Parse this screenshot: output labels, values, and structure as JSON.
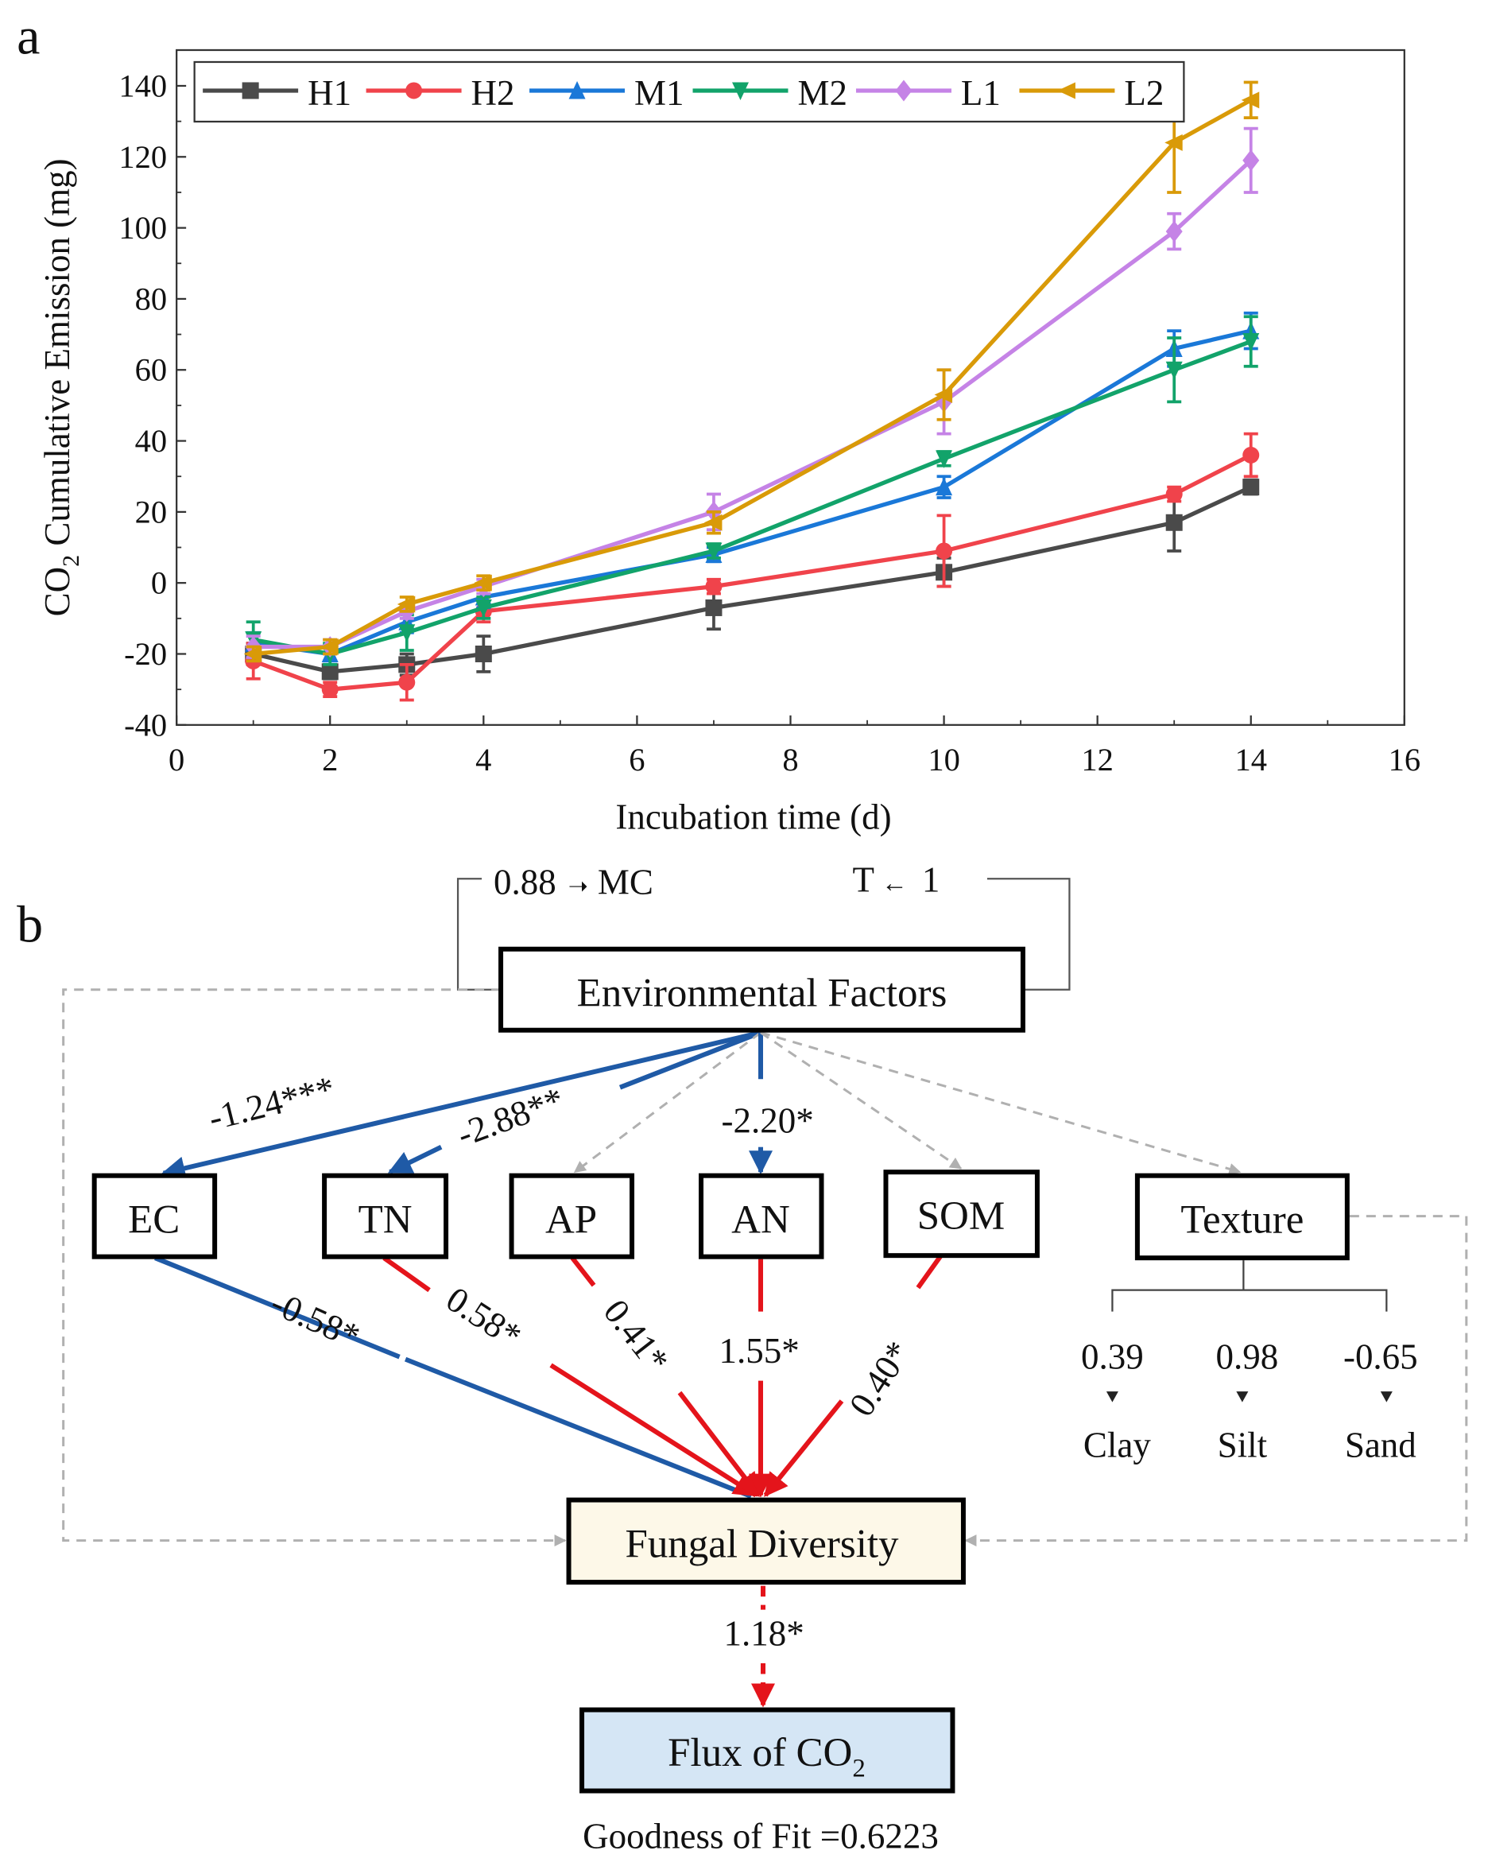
{
  "chart_data": {
    "type": "line",
    "panel_label": "a",
    "xlabel": "Incubation time (d)",
    "ylabel_prefix": "CO",
    "ylabel_sub": "2",
    "ylabel_suffix": " Cumulative Emission (mg)",
    "xlim": [
      0,
      16
    ],
    "ylim": [
      -40,
      140
    ],
    "xticks": [
      0,
      2,
      4,
      6,
      8,
      10,
      12,
      14,
      16
    ],
    "yticks": [
      -40,
      -20,
      0,
      20,
      40,
      60,
      80,
      100,
      120,
      140
    ],
    "legend_position": "top-left",
    "grid": false,
    "x": [
      1,
      2,
      3,
      4,
      7,
      10,
      13,
      14
    ],
    "series": [
      {
        "name": "H1",
        "color": "#4a4a4a",
        "marker": "square",
        "values": [
          -20,
          -25,
          -23,
          -20,
          -7,
          3,
          17,
          27
        ],
        "errors": [
          3,
          2,
          3,
          5,
          6,
          4,
          8,
          2
        ]
      },
      {
        "name": "H2",
        "color": "#f0434b",
        "marker": "circle",
        "values": [
          -22,
          -30,
          -28,
          -8,
          -1,
          9,
          25,
          36
        ],
        "errors": [
          5,
          2,
          5,
          3,
          2,
          10,
          2,
          6
        ]
      },
      {
        "name": "M1",
        "color": "#1a78d8",
        "marker": "triangle-up",
        "values": [
          -17,
          -20,
          -11,
          -4,
          8,
          27,
          66,
          71
        ],
        "errors": [
          3,
          2,
          3,
          3,
          2,
          3,
          5,
          5
        ]
      },
      {
        "name": "M2",
        "color": "#12a36a",
        "marker": "triangle-down",
        "values": [
          -16,
          -20,
          -14,
          -7,
          9,
          35,
          60,
          68
        ],
        "errors": [
          5,
          3,
          5,
          3,
          2,
          2,
          9,
          7
        ]
      },
      {
        "name": "L1",
        "color": "#c583e6",
        "marker": "diamond",
        "values": [
          -18,
          -18,
          -8,
          -1,
          20,
          51,
          99,
          119
        ],
        "errors": [
          3,
          2,
          2,
          2,
          5,
          9,
          5,
          9
        ]
      },
      {
        "name": "L2",
        "color": "#d99a08",
        "marker": "triangle-left",
        "values": [
          -20,
          -18,
          -6,
          0,
          17,
          53,
          124,
          136
        ],
        "errors": [
          2,
          2,
          2,
          2,
          3,
          7,
          14,
          5
        ]
      }
    ]
  },
  "diagram": {
    "panel_label": "b",
    "env_factors": "Environmental Factors",
    "mc_value": "0.88",
    "mc_label": "MC",
    "t_label": "T",
    "t_value": "1",
    "arrow_right": "➝",
    "arrow_left": "←",
    "nodes": {
      "ec": "EC",
      "tn": "TN",
      "ap": "AP",
      "an": "AN",
      "som": "SOM",
      "texture": "Texture",
      "fungal": "Fungal Diversity",
      "flux_prefix": "Flux of CO",
      "flux_sub": "2"
    },
    "coef": {
      "env_ec": "-1.24***",
      "env_tn": "-2.88**",
      "env_an": "-2.20*",
      "ec_fd": "-0.58*",
      "tn_fd": "0.58*",
      "ap_fd": "0.41*",
      "an_fd": "1.55*",
      "som_fd": "0.40*",
      "fd_flux": "1.18*"
    },
    "texture_parts": [
      {
        "value": "0.39",
        "label": "Clay"
      },
      {
        "value": "0.98",
        "label": "Silt"
      },
      {
        "value": "-0.65",
        "label": "Sand"
      }
    ],
    "goodness": "Goodness of Fit =0.6223",
    "colors": {
      "negative": "#1f5aa6",
      "positive": "#e4141b",
      "nonsig": "#b0b0b0",
      "fungal_fill": "#fdf8e8",
      "flux_fill": "#d5e6f5"
    }
  }
}
